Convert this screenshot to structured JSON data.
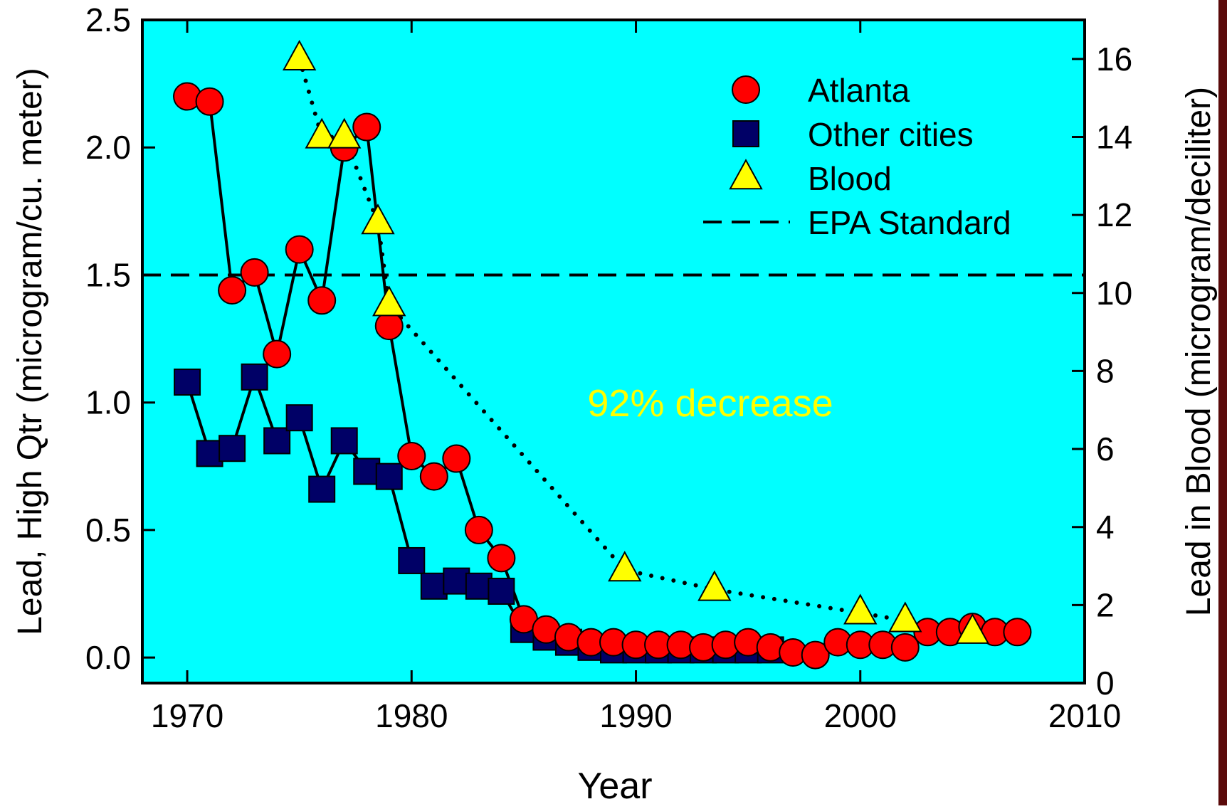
{
  "chart_data": {
    "type": "line",
    "xlabel": "Year",
    "ylabel_left": "Lead, High Qtr (microgram/cu. meter)",
    "ylabel_right": "Lead in Blood (microgram/deciliter)",
    "xlim": [
      1968,
      2010
    ],
    "ylim_left": [
      -0.1,
      2.5
    ],
    "ylim_right": [
      0,
      17
    ],
    "x_ticks": [
      1970,
      1980,
      1990,
      2000,
      2010
    ],
    "y_ticks_left": [
      0.0,
      0.5,
      1.0,
      1.5,
      2.0,
      2.5
    ],
    "y_ticks_left_labels": [
      "0.0",
      "0.5",
      "1.0",
      "1.5",
      "2.0",
      "2.5"
    ],
    "y_ticks_right": [
      0,
      2,
      4,
      6,
      8,
      10,
      12,
      14,
      16
    ],
    "legend_position": "top-right",
    "annotation": "92% decrease",
    "colors": {
      "plot_bg": "#00FFFF",
      "atlanta": "#FF0000",
      "other": "#000066",
      "blood": "#FFFF00",
      "annotation": "#FFFF00"
    },
    "series": [
      {
        "name": "Atlanta",
        "axis": "left",
        "marker": "circle",
        "line": "solid",
        "x": [
          1970,
          1971,
          1972,
          1973,
          1974,
          1975,
          1976,
          1977,
          1978,
          1979,
          1980,
          1981,
          1982,
          1983,
          1984,
          1985,
          1986,
          1987,
          1988,
          1989,
          1990,
          1991,
          1992,
          1993,
          1994,
          1995,
          1996,
          1997,
          1998,
          1999,
          2000,
          2001,
          2002,
          2003,
          2004,
          2005,
          2006,
          2007
        ],
        "y": [
          2.2,
          2.18,
          1.44,
          1.51,
          1.19,
          1.6,
          1.4,
          2.0,
          2.08,
          1.3,
          0.79,
          0.71,
          0.78,
          0.5,
          0.39,
          0.15,
          0.11,
          0.08,
          0.06,
          0.06,
          0.05,
          0.05,
          0.05,
          0.04,
          0.05,
          0.06,
          0.04,
          0.02,
          0.01,
          0.06,
          0.05,
          0.05,
          0.04,
          0.1,
          0.1,
          0.12,
          0.1,
          0.1
        ]
      },
      {
        "name": "Other cities",
        "axis": "left",
        "marker": "square",
        "line": "solid",
        "x": [
          1970,
          1971,
          1972,
          1973,
          1974,
          1975,
          1976,
          1977,
          1978,
          1979,
          1980,
          1981,
          1982,
          1983,
          1984,
          1985,
          1986,
          1987,
          1988,
          1989,
          1990,
          1991,
          1992,
          1993,
          1994,
          1995,
          1996
        ],
        "y": [
          1.08,
          0.8,
          0.82,
          1.1,
          0.85,
          0.94,
          0.66,
          0.85,
          0.73,
          0.71,
          0.38,
          0.28,
          0.3,
          0.28,
          0.26,
          0.11,
          0.08,
          0.06,
          0.04,
          0.03,
          0.03,
          0.03,
          0.03,
          0.03,
          0.03,
          0.03,
          0.03
        ]
      },
      {
        "name": "Blood",
        "axis": "right",
        "marker": "triangle",
        "line": "dotted",
        "x": [
          1975,
          1976,
          1977,
          1978.5,
          1979,
          1989.5,
          1993.5,
          2000,
          2002,
          2005
        ],
        "y": [
          16.0,
          14.0,
          14.0,
          11.8,
          9.7,
          2.9,
          2.4,
          1.8,
          1.6,
          1.3
        ]
      },
      {
        "name": "EPA Standard",
        "axis": "left",
        "marker": "none",
        "line": "dashed",
        "x": [
          1968,
          2010
        ],
        "y": [
          1.5,
          1.5
        ]
      }
    ]
  }
}
